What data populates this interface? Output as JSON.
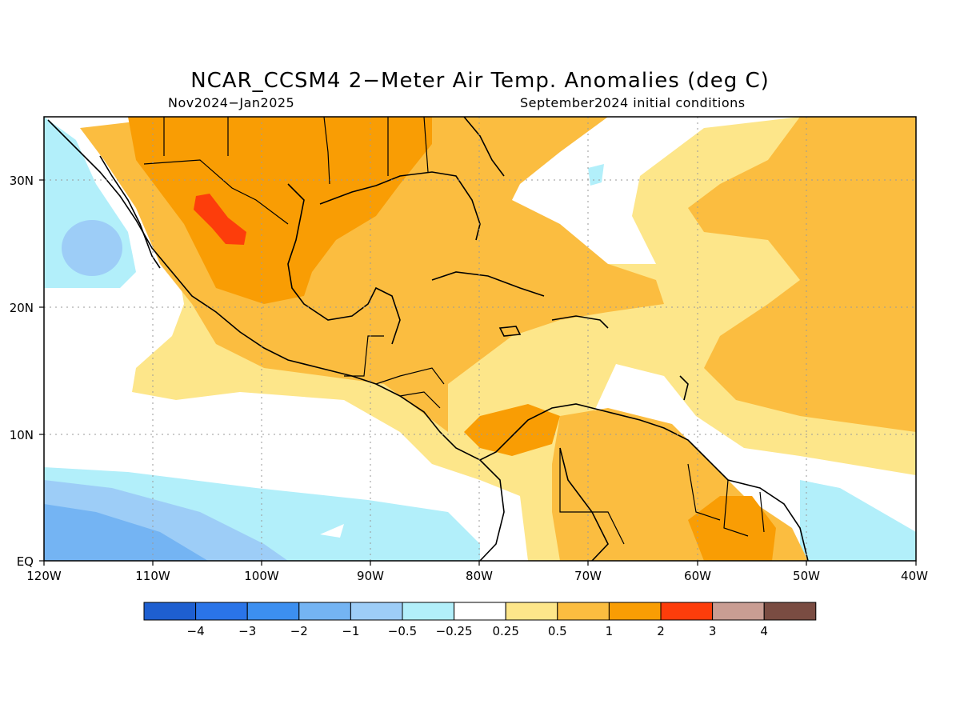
{
  "header": {
    "title": "NCAR_CCSM4 2−Meter Air Temp. Anomalies (deg C)",
    "period": "Nov2024−Jan2025",
    "init": "September2024 initial conditions"
  },
  "map": {
    "lat_labels": [
      "30N",
      "20N",
      "10N",
      "EQ"
    ],
    "lon_labels": [
      "120W",
      "110W",
      "100W",
      "90W",
      "80W",
      "70W",
      "60W",
      "50W",
      "40W"
    ],
    "lon_range": [
      -120,
      -40
    ],
    "lat_range": [
      0,
      35
    ]
  },
  "colorbar": {
    "labels": [
      "−4",
      "−3",
      "−2",
      "−1",
      "−0.5",
      "−0.25",
      "0.25",
      "0.5",
      "1",
      "2",
      "3",
      "4"
    ],
    "colors": [
      "#1e5fd0",
      "#2a74e8",
      "#3c8ff0",
      "#74b4f3",
      "#9dcdf7",
      "#b2effa",
      "#ffffff",
      "#fde68a",
      "#fbbd40",
      "#f99d04",
      "#fd3d0b",
      "#c99d93",
      "#7a4c42"
    ]
  }
}
